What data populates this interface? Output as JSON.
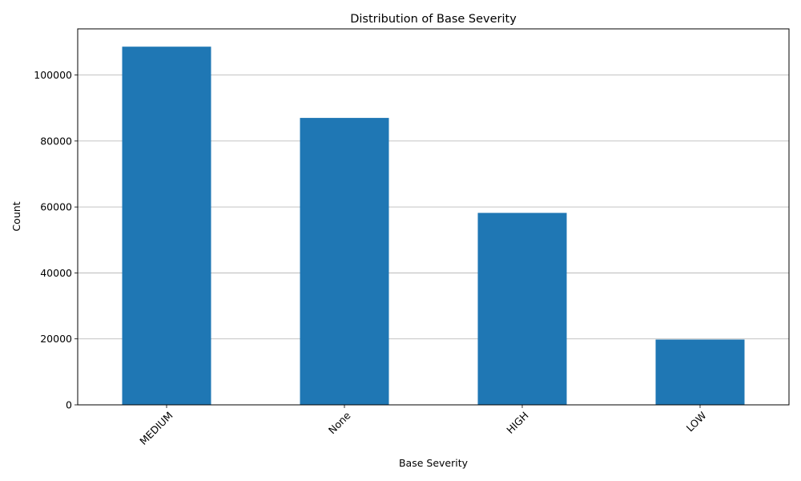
{
  "chart_data": {
    "type": "bar",
    "title": "Distribution of Base Severity",
    "xlabel": "Base Severity",
    "ylabel": "Count",
    "categories": [
      "MEDIUM",
      "None",
      "HIGH",
      "LOW"
    ],
    "values": [
      108600,
      87000,
      58200,
      19800
    ],
    "ylim": [
      0,
      114000
    ],
    "yticks": [
      0,
      20000,
      40000,
      60000,
      80000,
      100000
    ],
    "ytick_labels": [
      "0",
      "20000",
      "40000",
      "60000",
      "80000",
      "100000"
    ],
    "grid": "y-major",
    "legend": "none",
    "bar_color": "#1f77b4",
    "grid_color": "#b0b0b0",
    "xtick_rotation_deg": 45
  }
}
